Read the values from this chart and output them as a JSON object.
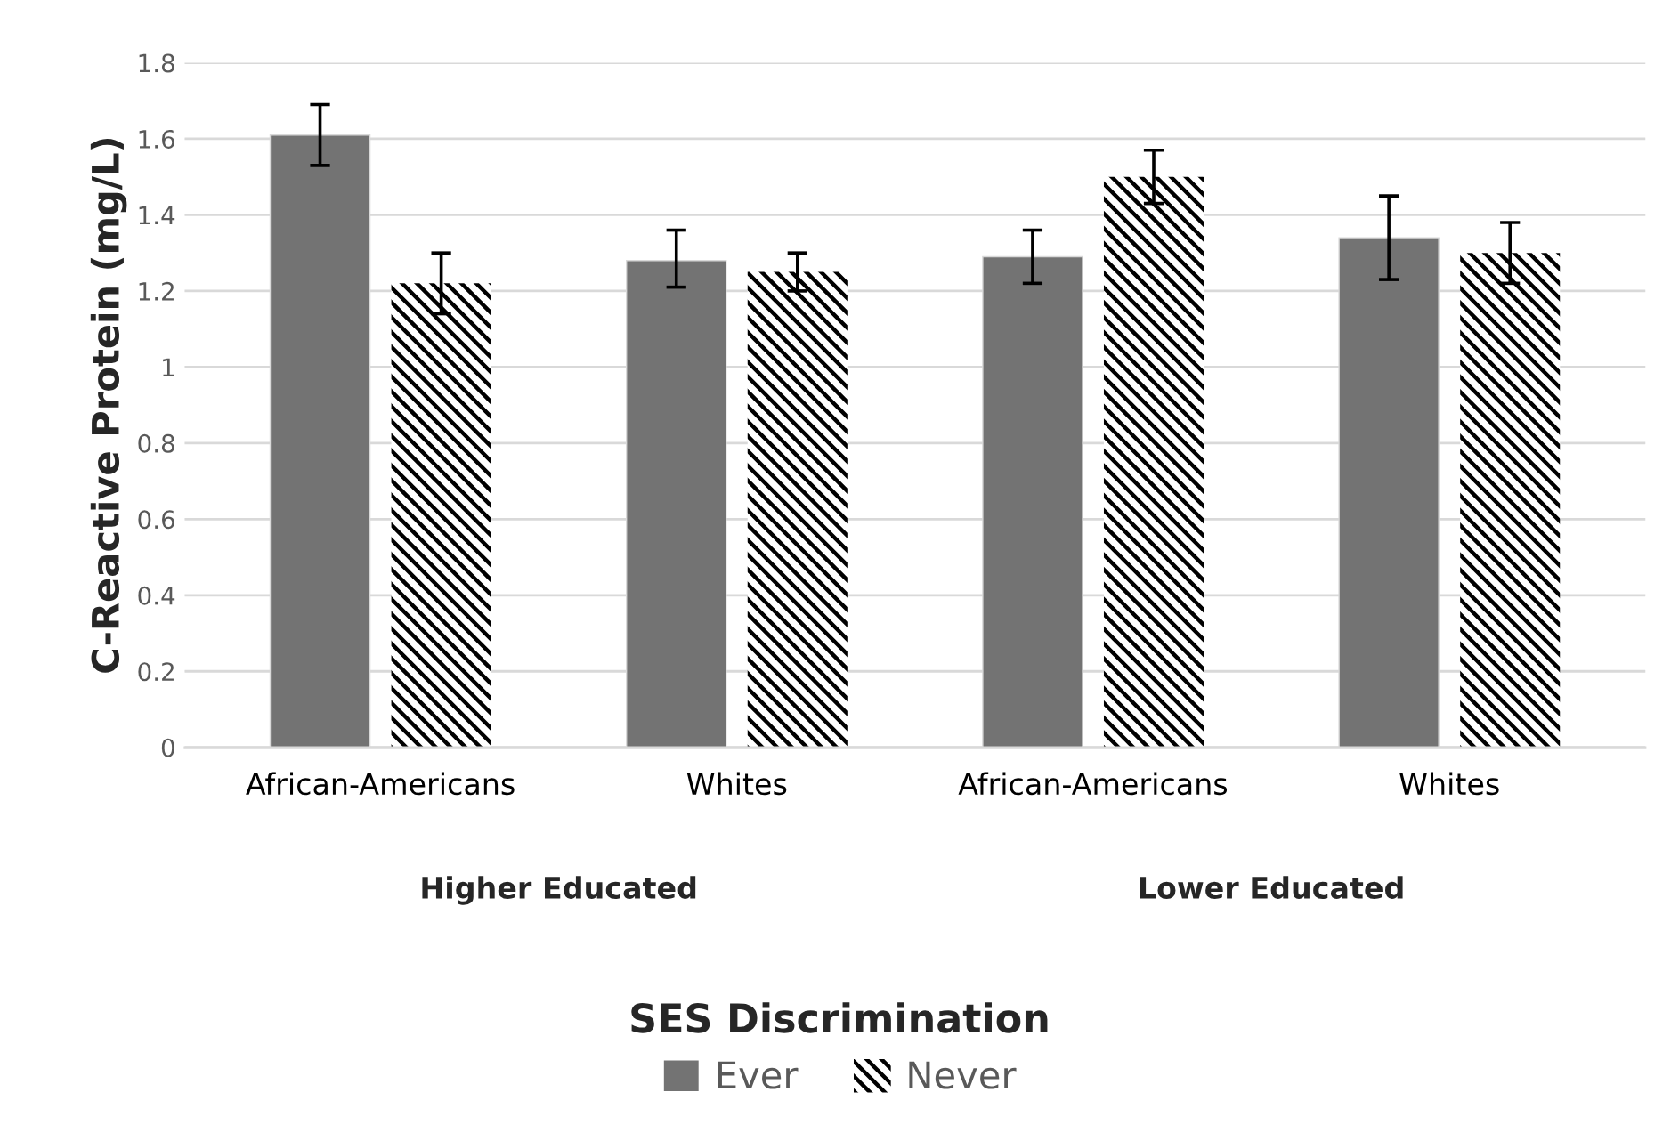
{
  "chart_data": {
    "type": "bar",
    "ylabel": "C-Reactive Protein (mg/L)",
    "legend_title": "SES Discrimination",
    "categories": [
      "African-Americans",
      "Whites",
      "African-Americans",
      "Whites"
    ],
    "series": [
      {
        "name": "Ever",
        "color": "#737373",
        "values": [
          1.61,
          1.28,
          1.29,
          1.34
        ],
        "errors": [
          [
            1.53,
            1.69
          ],
          [
            1.21,
            1.36
          ],
          [
            1.22,
            1.36
          ],
          [
            1.23,
            1.45
          ]
        ]
      },
      {
        "name": "Never",
        "color": "#000000",
        "values": [
          1.22,
          1.25,
          1.5,
          1.3
        ],
        "errors": [
          [
            1.14,
            1.3
          ],
          [
            1.2,
            1.3
          ],
          [
            1.43,
            1.57
          ],
          [
            1.22,
            1.38
          ]
        ]
      }
    ],
    "ylim": [
      0,
      1.8
    ],
    "yticks": [
      0,
      0.2,
      0.4,
      0.6,
      0.8,
      1,
      1.2,
      1.4,
      1.6,
      1.8
    ],
    "annotations": [
      "Higher Educated",
      "Lower Educated"
    ],
    "grid": "y",
    "legend": "bottom"
  }
}
